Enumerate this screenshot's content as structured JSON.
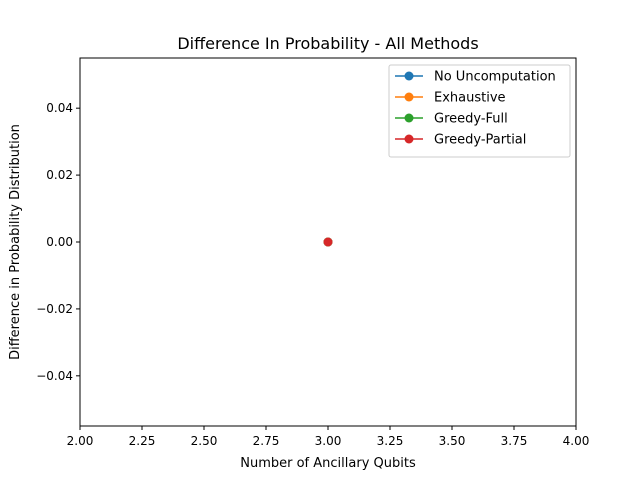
{
  "chart_data": {
    "type": "line",
    "title": "Difference In Probability - All Methods",
    "xlabel": "Number of Ancillary Qubits",
    "ylabel": "Difference in Probability Distribution",
    "xlim": [
      2.0,
      4.0
    ],
    "ylim": [
      -0.055,
      0.055
    ],
    "x_ticks": [
      2.0,
      2.25,
      2.5,
      2.75,
      3.0,
      3.25,
      3.5,
      3.75,
      4.0
    ],
    "x_tick_labels": [
      "2.00",
      "2.25",
      "2.50",
      "2.75",
      "3.00",
      "3.25",
      "3.50",
      "3.75",
      "4.00"
    ],
    "y_ticks": [
      -0.04,
      -0.02,
      0.0,
      0.02,
      0.04
    ],
    "y_tick_labels": [
      "−0.04",
      "−0.02",
      "0.00",
      "0.02",
      "0.04"
    ],
    "grid": false,
    "legend_position": "top-right",
    "series": [
      {
        "name": "No Uncomputation",
        "color": "#1f77b4",
        "x": [
          3
        ],
        "y": [
          0.0
        ]
      },
      {
        "name": "Exhaustive",
        "color": "#ff7f0e",
        "x": [
          3
        ],
        "y": [
          0.0
        ]
      },
      {
        "name": "Greedy-Full",
        "color": "#2ca02c",
        "x": [
          3
        ],
        "y": [
          0.0
        ]
      },
      {
        "name": "Greedy-Partial",
        "color": "#d62728",
        "x": [
          3
        ],
        "y": [
          0.0
        ]
      }
    ]
  }
}
